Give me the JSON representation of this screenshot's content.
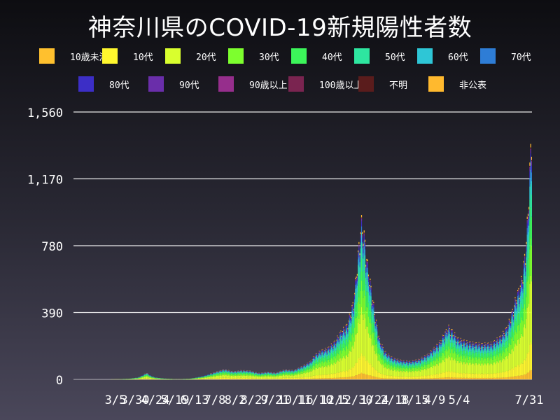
{
  "title": "神奈川県のCOVID-19新規陽性者数",
  "colors": {
    "grid": "#ffffff",
    "axis_text": "#ffffff"
  },
  "chart_data": {
    "type": "bar",
    "stacked": true,
    "title": "神奈川県のCOVID-19新規陽性者数",
    "xlabel": "",
    "ylabel": "",
    "ylim": [
      0,
      1560
    ],
    "y_ticks": [
      0,
      390,
      780,
      1170,
      1560
    ],
    "y_tick_labels": [
      "0",
      "390",
      "780",
      "1,170",
      "1,560"
    ],
    "x_tick_labels": [
      "3/5",
      "3/30",
      "4/24",
      "5/19",
      "6/13",
      "7/8",
      "8/2",
      "8/27",
      "9/21",
      "10/16",
      "11/10",
      "12/5",
      "12/30",
      "1/24",
      "2/18",
      "3/15",
      "4/9",
      "5/4",
      "7/31"
    ],
    "legend_placement": "top",
    "series": [
      {
        "name": "10歳未満",
        "color": "#ffc02e"
      },
      {
        "name": "10代",
        "color": "#fff72e"
      },
      {
        "name": "20代",
        "color": "#d9ff2e"
      },
      {
        "name": "30代",
        "color": "#7dff2e"
      },
      {
        "name": "40代",
        "color": "#3cf55a"
      },
      {
        "name": "50代",
        "color": "#2ee6a0"
      },
      {
        "name": "60代",
        "color": "#2ec6d6"
      },
      {
        "name": "70代",
        "color": "#2e7dd6"
      },
      {
        "name": "80代",
        "color": "#3c2ec6"
      },
      {
        "name": "90代",
        "color": "#6a2eaa"
      },
      {
        "name": "90歳以上",
        "color": "#962e8c"
      },
      {
        "name": "100歳以上",
        "color": "#7a2450"
      },
      {
        "name": "不明",
        "color": "#5a1c1c"
      },
      {
        "name": "非公表",
        "color": "#ffb92e"
      }
    ],
    "daily_totals": [
      [
        0,
        0
      ],
      [
        20,
        2
      ],
      [
        40,
        5
      ],
      [
        50,
        12
      ],
      [
        55,
        25
      ],
      [
        60,
        40
      ],
      [
        65,
        22
      ],
      [
        70,
        12
      ],
      [
        80,
        6
      ],
      [
        95,
        3
      ],
      [
        110,
        5
      ],
      [
        118,
        12
      ],
      [
        125,
        20
      ],
      [
        130,
        28
      ],
      [
        140,
        45
      ],
      [
        150,
        62
      ],
      [
        160,
        48
      ],
      [
        170,
        55
      ],
      [
        180,
        52
      ],
      [
        190,
        38
      ],
      [
        200,
        45
      ],
      [
        210,
        40
      ],
      [
        220,
        60
      ],
      [
        230,
        55
      ],
      [
        240,
        80
      ],
      [
        250,
        110
      ],
      [
        255,
        150
      ],
      [
        262,
        175
      ],
      [
        270,
        190
      ],
      [
        278,
        230
      ],
      [
        285,
        290
      ],
      [
        292,
        330
      ],
      [
        297,
        420
      ],
      [
        300,
        480
      ],
      [
        303,
        650
      ],
      [
        306,
        820
      ],
      [
        309,
        960
      ],
      [
        312,
        880
      ],
      [
        316,
        700
      ],
      [
        320,
        560
      ],
      [
        325,
        380
      ],
      [
        330,
        240
      ],
      [
        336,
        170
      ],
      [
        345,
        130
      ],
      [
        355,
        115
      ],
      [
        365,
        110
      ],
      [
        375,
        120
      ],
      [
        385,
        150
      ],
      [
        393,
        190
      ],
      [
        400,
        230
      ],
      [
        405,
        280
      ],
      [
        410,
        320
      ],
      [
        415,
        290
      ],
      [
        420,
        250
      ],
      [
        430,
        230
      ],
      [
        440,
        220
      ],
      [
        450,
        215
      ],
      [
        460,
        220
      ],
      [
        470,
        260
      ],
      [
        478,
        320
      ],
      [
        484,
        420
      ],
      [
        488,
        500
      ],
      [
        492,
        560
      ],
      [
        496,
        650
      ],
      [
        500,
        850
      ],
      [
        503,
        1150
      ],
      [
        506,
        1540
      ]
    ]
  }
}
